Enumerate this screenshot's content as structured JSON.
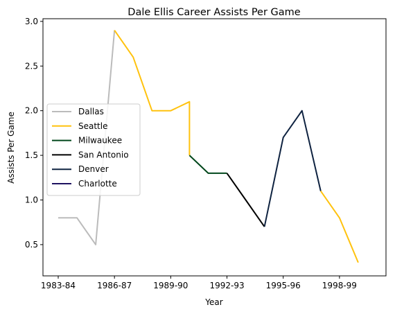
{
  "chart_data": {
    "type": "line",
    "title": "Dale Ellis Career Assists Per Game",
    "xlabel": "Year",
    "ylabel": "Assists Per Game",
    "xlim": [
      "1983-84",
      "2000-01"
    ],
    "ylim": [
      0.15,
      3.03
    ],
    "x_ticks": [
      "1983-84",
      "1986-87",
      "1989-90",
      "1992-93",
      "1995-96",
      "1998-99"
    ],
    "y_ticks": [
      "0.5",
      "1.0",
      "1.5",
      "2.0",
      "2.5",
      "3.0"
    ],
    "grid": false,
    "legend_position": "center-left",
    "series": [
      {
        "name": "Dallas",
        "color": "#bbbbbb",
        "points": [
          {
            "x": "1983-84",
            "y": 0.8
          },
          {
            "x": "1984-85",
            "y": 0.8
          },
          {
            "x": "1985-86",
            "y": 0.5
          },
          {
            "x": "1986-87",
            "y": 2.9
          }
        ]
      },
      {
        "name": "Seattle",
        "color": "#ffc20e",
        "points": [
          {
            "x": "1986-87",
            "y": 2.9
          },
          {
            "x": "1987-88",
            "y": 2.6
          },
          {
            "x": "1988-89",
            "y": 2.0
          },
          {
            "x": "1989-90",
            "y": 2.0
          },
          {
            "x": "1990-91",
            "y": 2.1
          },
          {
            "x": "1990-91",
            "y": 1.5
          }
        ]
      },
      {
        "name": "Milwaukee",
        "color": "#00471b",
        "points": [
          {
            "x": "1990-91",
            "y": 1.5
          },
          {
            "x": "1991-92",
            "y": 1.3
          },
          {
            "x": "1992-93",
            "y": 1.3
          }
        ]
      },
      {
        "name": "San Antonio",
        "color": "#000000",
        "points": [
          {
            "x": "1992-93",
            "y": 1.3
          },
          {
            "x": "1993-94",
            "y": 1.0
          },
          {
            "x": "1994-95",
            "y": 0.7
          }
        ]
      },
      {
        "name": "Denver",
        "color": "#0e2240",
        "points": [
          {
            "x": "1994-95",
            "y": 0.7
          },
          {
            "x": "1995-96",
            "y": 1.7
          },
          {
            "x": "1996-97",
            "y": 2.0
          },
          {
            "x": "1997-98",
            "y": 1.1
          }
        ]
      },
      {
        "name": "Seattle",
        "color": "#ffc20e",
        "show_in_legend": false,
        "points": [
          {
            "x": "1997-98",
            "y": 1.1
          },
          {
            "x": "1998-99",
            "y": 0.8
          },
          {
            "x": "1999-00",
            "y": 0.3
          }
        ]
      },
      {
        "name": "Charlotte",
        "color": "#1d1160",
        "points": []
      }
    ]
  }
}
